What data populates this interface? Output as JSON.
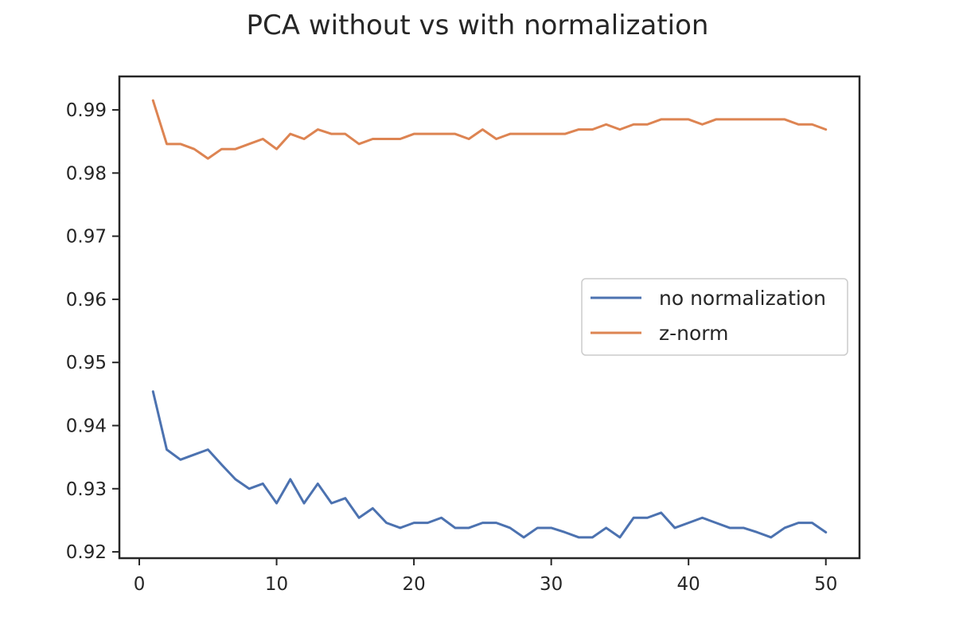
{
  "chart_data": {
    "type": "line",
    "title": "PCA without vs with normalization",
    "xlabel": "",
    "ylabel": "",
    "xlim": [
      -1.45,
      52.45
    ],
    "ylim": [
      0.919,
      0.9953
    ],
    "xticks": [
      0,
      10,
      20,
      30,
      40,
      50
    ],
    "yticks": [
      0.92,
      0.93,
      0.94,
      0.95,
      0.96,
      0.97,
      0.98,
      0.99
    ],
    "grid": false,
    "legend_position": "center-right",
    "x": [
      1,
      2,
      3,
      4,
      5,
      6,
      7,
      8,
      9,
      10,
      11,
      12,
      13,
      14,
      15,
      16,
      17,
      18,
      19,
      20,
      21,
      22,
      23,
      24,
      25,
      26,
      27,
      28,
      29,
      30,
      31,
      32,
      33,
      34,
      35,
      36,
      37,
      38,
      39,
      40,
      41,
      42,
      43,
      44,
      45,
      46,
      47,
      48,
      49,
      50
    ],
    "series": [
      {
        "name": "no normalization",
        "color": "#4c72b0",
        "values": [
          0.9454,
          0.9362,
          0.9346,
          0.9354,
          0.9362,
          0.9338,
          0.9315,
          0.93,
          0.9308,
          0.9277,
          0.9315,
          0.9277,
          0.9308,
          0.9277,
          0.9285,
          0.9254,
          0.9269,
          0.9246,
          0.9238,
          0.9246,
          0.9246,
          0.9254,
          0.9238,
          0.9238,
          0.9246,
          0.9246,
          0.9238,
          0.9223,
          0.9238,
          0.9238,
          0.9231,
          0.9223,
          0.9223,
          0.9238,
          0.9223,
          0.9254,
          0.9254,
          0.9262,
          0.9238,
          0.9246,
          0.9254,
          0.9246,
          0.9238,
          0.9238,
          0.9231,
          0.9223,
          0.9238,
          0.9246,
          0.9246,
          0.9231
        ]
      },
      {
        "name": "z-norm",
        "color": "#dd8452",
        "values": [
          0.9915,
          0.9846,
          0.9846,
          0.9838,
          0.9823,
          0.9838,
          0.9838,
          0.9846,
          0.9854,
          0.9838,
          0.9862,
          0.9854,
          0.9869,
          0.9862,
          0.9862,
          0.9846,
          0.9854,
          0.9854,
          0.9854,
          0.9862,
          0.9862,
          0.9862,
          0.9862,
          0.9854,
          0.9869,
          0.9854,
          0.9862,
          0.9862,
          0.9862,
          0.9862,
          0.9862,
          0.9869,
          0.9869,
          0.9877,
          0.9869,
          0.9877,
          0.9877,
          0.9885,
          0.9885,
          0.9885,
          0.9877,
          0.9885,
          0.9885,
          0.9885,
          0.9885,
          0.9885,
          0.9885,
          0.9877,
          0.9877,
          0.9869
        ]
      }
    ]
  }
}
